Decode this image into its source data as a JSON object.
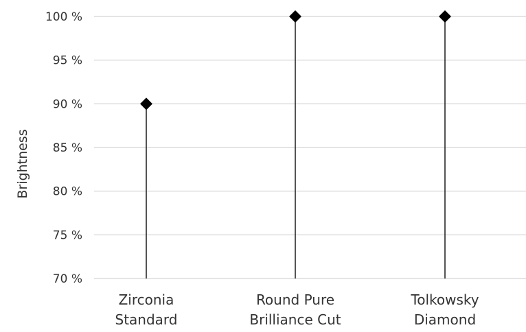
{
  "chart_data": {
    "type": "lollipop",
    "title": "",
    "xlabel": "",
    "ylabel": "Brightness",
    "ylim": [
      70,
      100
    ],
    "y_ticks": [
      {
        "value": 100,
        "label": "100 %"
      },
      {
        "value": 95,
        "label": "95 %"
      },
      {
        "value": 90,
        "label": "90 %"
      },
      {
        "value": 85,
        "label": "85 %"
      },
      {
        "value": 80,
        "label": "80 %"
      },
      {
        "value": 75,
        "label": "75 %"
      },
      {
        "value": 70,
        "label": "70 %"
      }
    ],
    "categories": [
      {
        "lines": [
          "Zirconia",
          "Standard"
        ]
      },
      {
        "lines": [
          "Round Pure",
          "Brilliance Cut"
        ]
      },
      {
        "lines": [
          "Tolkowsky",
          "Diamond"
        ]
      }
    ],
    "values": [
      90,
      100,
      100
    ],
    "grid": true,
    "legend": "none",
    "colors": {
      "stem": "#1a1a1a",
      "marker": "#000000",
      "grid": "#c8c8c8",
      "text": "#333333"
    }
  }
}
